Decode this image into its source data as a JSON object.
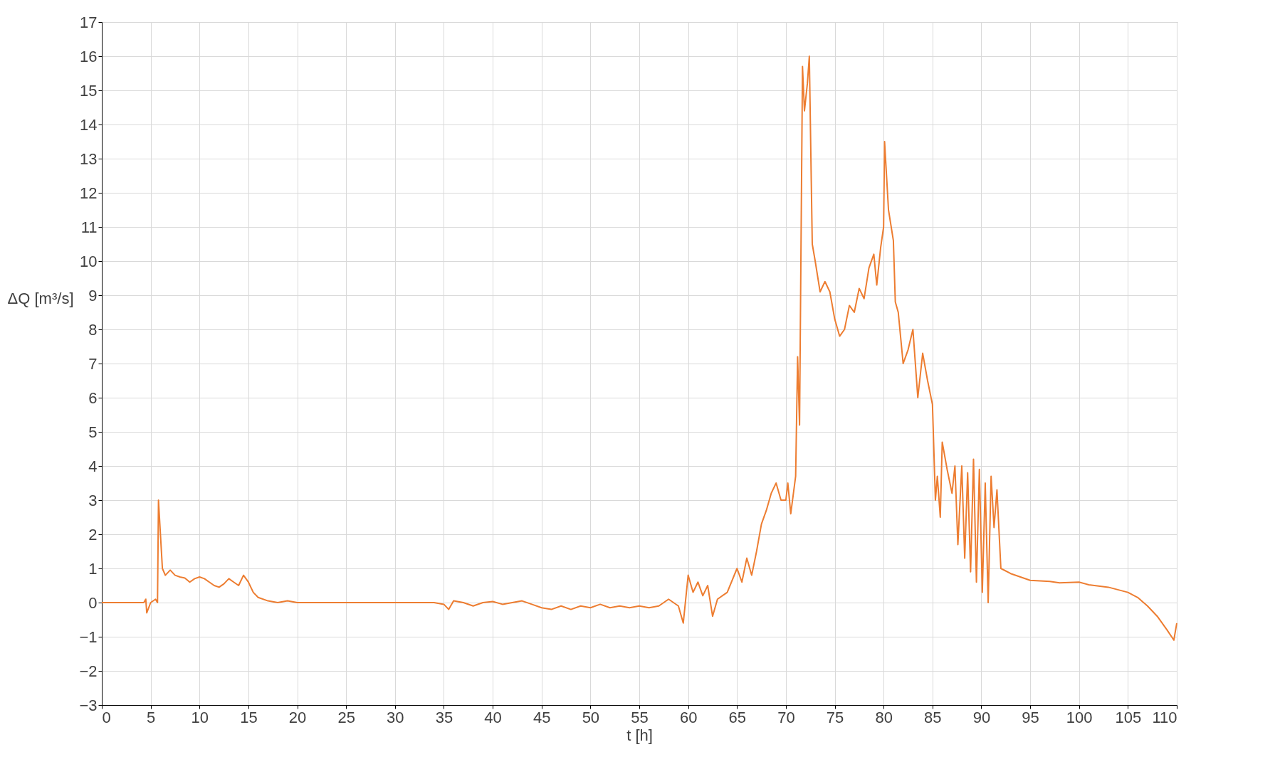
{
  "chart_data": {
    "type": "line",
    "xlabel": "t [h]",
    "ylabel": "ΔQ [m³/s]",
    "xlim": [
      0,
      110
    ],
    "xticks": [
      0,
      5,
      10,
      15,
      20,
      25,
      30,
      35,
      40,
      45,
      50,
      55,
      60,
      65,
      70,
      75,
      80,
      85,
      90,
      95,
      100,
      105,
      110
    ],
    "ylim": [
      -3,
      17
    ],
    "yticks": [
      -3,
      -2,
      -1,
      0,
      1,
      2,
      3,
      4,
      5,
      6,
      7,
      8,
      9,
      10,
      11,
      12,
      13,
      14,
      15,
      16,
      17
    ],
    "grid": true,
    "marker": "none",
    "line_style": "solid",
    "series": [
      {
        "color": "#ed7d31",
        "x": [
          0,
          4.3,
          4.5,
          4.6,
          5,
          5.5,
          5.7,
          5.8,
          6.2,
          6.5,
          7,
          7.5,
          8,
          8.5,
          9,
          9.5,
          10,
          10.5,
          11,
          11.5,
          12,
          12.5,
          13,
          13.5,
          14,
          14.5,
          15,
          15.5,
          16,
          17,
          18,
          19,
          20,
          30,
          34,
          35,
          35.5,
          36,
          37,
          38,
          39,
          40,
          41,
          42,
          43,
          44,
          45,
          46,
          47,
          48,
          49,
          50,
          51,
          52,
          53,
          54,
          55,
          56,
          57,
          58,
          59,
          59.5,
          60,
          60.5,
          61,
          61.5,
          62,
          62.5,
          63,
          64,
          65,
          65.5,
          66,
          66.5,
          67,
          67.5,
          68,
          68.5,
          69,
          69.5,
          70,
          70.2,
          70.5,
          71,
          71.2,
          71.4,
          71.7,
          71.9,
          72.2,
          72.4,
          72.7,
          73,
          73.5,
          74,
          74.5,
          75,
          75.5,
          76,
          76.5,
          77,
          77.5,
          78,
          78.5,
          79,
          79.3,
          79.7,
          80,
          80.1,
          80.5,
          81,
          81.2,
          81.5,
          82,
          82.5,
          83,
          83.5,
          84,
          84.5,
          85,
          85.3,
          85.5,
          85.8,
          86,
          86.5,
          87,
          87.3,
          87.6,
          88,
          88.3,
          88.6,
          88.9,
          89.2,
          89.5,
          89.8,
          90.1,
          90.4,
          90.7,
          91,
          91.3,
          91.6,
          92,
          93,
          94,
          95,
          97,
          98,
          100,
          101,
          103,
          105,
          106,
          107,
          108,
          109,
          109.7,
          110
        ],
        "values": [
          0,
          0,
          0.1,
          -0.3,
          0,
          0.1,
          0,
          3.0,
          1.0,
          0.8,
          0.95,
          0.8,
          0.75,
          0.72,
          0.6,
          0.7,
          0.75,
          0.7,
          0.6,
          0.5,
          0.45,
          0.55,
          0.7,
          0.6,
          0.5,
          0.8,
          0.6,
          0.3,
          0.15,
          0.05,
          0,
          0.05,
          0,
          0,
          0,
          -0.05,
          -0.2,
          0.05,
          0,
          -0.1,
          0,
          0.03,
          -0.05,
          0,
          0.05,
          -0.05,
          -0.15,
          -0.2,
          -0.1,
          -0.2,
          -0.1,
          -0.15,
          -0.05,
          -0.15,
          -0.1,
          -0.15,
          -0.1,
          -0.15,
          -0.1,
          0.1,
          -0.1,
          -0.6,
          0.8,
          0.3,
          0.6,
          0.2,
          0.5,
          -0.4,
          0.1,
          0.3,
          1.0,
          0.6,
          1.3,
          0.8,
          1.5,
          2.3,
          2.7,
          3.2,
          3.5,
          3.0,
          3.0,
          3.5,
          2.6,
          3.7,
          7.2,
          5.2,
          15.7,
          14.4,
          15.2,
          16.0,
          10.5,
          10.0,
          9.1,
          9.4,
          9.1,
          8.3,
          7.8,
          8.0,
          8.7,
          8.5,
          9.2,
          8.9,
          9.8,
          10.2,
          9.3,
          10.4,
          11.0,
          13.5,
          11.5,
          10.6,
          8.8,
          8.5,
          7.0,
          7.4,
          8.0,
          6.0,
          7.3,
          6.5,
          5.8,
          3.0,
          3.7,
          2.5,
          4.7,
          3.9,
          3.2,
          4.0,
          1.7,
          4.0,
          1.3,
          3.8,
          0.9,
          4.2,
          0.6,
          3.9,
          0.3,
          3.5,
          0,
          3.7,
          2.2,
          3.3,
          1.0,
          0.85,
          0.75,
          0.65,
          0.62,
          0.58,
          0.6,
          0.52,
          0.45,
          0.3,
          0.15,
          -0.1,
          -0.4,
          -0.8,
          -1.1,
          -0.6
        ]
      }
    ]
  }
}
